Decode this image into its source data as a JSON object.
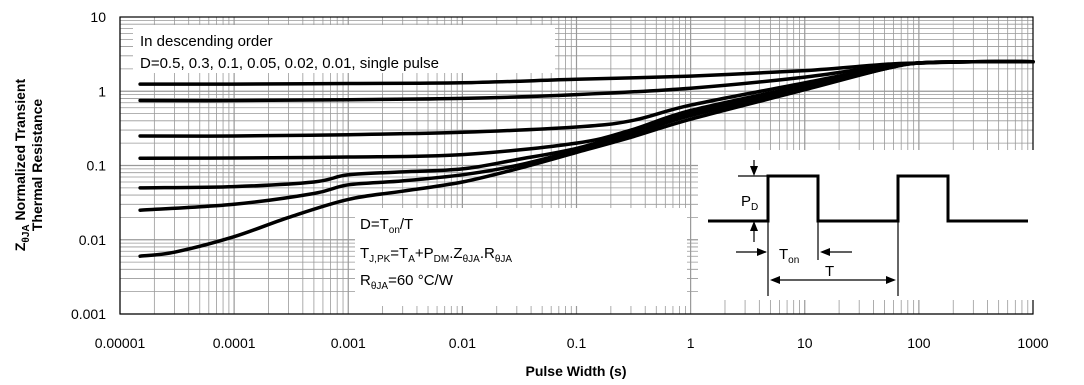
{
  "chart_data": {
    "type": "line",
    "xlabel": "Pulse Width (s)",
    "ylabel_line1": "Normalized Transient",
    "ylabel_line2": "Thermal Resistance",
    "ylabel_symbol": "Z",
    "ylabel_symbol_sub": "θJA",
    "x_scale": "log",
    "y_scale": "log",
    "xlim": [
      1e-05,
      1000
    ],
    "ylim": [
      0.001,
      10
    ],
    "grid": true,
    "x_ticks": [
      "0.00001",
      "0.0001",
      "0.001",
      "0.01",
      "0.1",
      "1",
      "10",
      "100",
      "1000"
    ],
    "y_ticks": [
      "0.001",
      "0.01",
      "0.1",
      "1",
      "10"
    ],
    "legend_note": {
      "line1": "In descending order",
      "line2": "D=0.5, 0.3, 0.1, 0.05, 0.02, 0.01, single pulse"
    },
    "formulas": {
      "duty": "D=T<sub>on</sub>/T",
      "tj": "T<sub>J,PK</sub>=T<sub>A</sub>+P<sub>DM</sub>.Z<sub>θJA</sub>.R<sub>θJA</sub>",
      "r": "R<sub>θJA</sub>=60 °C/W"
    },
    "inset": {
      "pd": "P<sub>D</sub>",
      "ton": "T<sub>on</sub>",
      "t": "T"
    },
    "series": [
      {
        "values": [
          [
            1.5e-05,
            1.25
          ],
          [
            0.0001,
            1.25
          ],
          [
            0.001,
            1.27
          ],
          [
            0.01,
            1.3
          ],
          [
            0.1,
            1.45
          ],
          [
            1,
            1.6
          ],
          [
            10,
            1.9
          ],
          [
            50,
            2.3
          ],
          [
            100,
            2.4
          ],
          [
            300,
            2.5
          ],
          [
            1000,
            2.5
          ]
        ]
      },
      {
        "values": [
          [
            1.5e-05,
            0.75
          ],
          [
            0.0001,
            0.75
          ],
          [
            0.001,
            0.77
          ],
          [
            0.01,
            0.8
          ],
          [
            0.1,
            0.9
          ],
          [
            1,
            1.1
          ],
          [
            10,
            1.55
          ],
          [
            50,
            2.2
          ],
          [
            100,
            2.4
          ],
          [
            300,
            2.5
          ],
          [
            1000,
            2.5
          ]
        ]
      },
      {
        "values": [
          [
            1.5e-05,
            0.25
          ],
          [
            0.0001,
            0.25
          ],
          [
            0.001,
            0.26
          ],
          [
            0.01,
            0.28
          ],
          [
            0.1,
            0.33
          ],
          [
            0.3,
            0.4
          ],
          [
            1,
            0.65
          ],
          [
            10,
            1.3
          ],
          [
            50,
            2.1
          ],
          [
            100,
            2.4
          ],
          [
            300,
            2.5
          ],
          [
            1000,
            2.5
          ]
        ]
      },
      {
        "values": [
          [
            1.5e-05,
            0.125
          ],
          [
            0.0001,
            0.126
          ],
          [
            0.001,
            0.13
          ],
          [
            0.01,
            0.14
          ],
          [
            0.1,
            0.2
          ],
          [
            0.3,
            0.3
          ],
          [
            1,
            0.55
          ],
          [
            10,
            1.2
          ],
          [
            50,
            2.1
          ],
          [
            100,
            2.4
          ],
          [
            300,
            2.5
          ],
          [
            1000,
            2.5
          ]
        ]
      },
      {
        "values": [
          [
            1.5e-05,
            0.05
          ],
          [
            0.0001,
            0.052
          ],
          [
            0.0005,
            0.06
          ],
          [
            0.001,
            0.075
          ],
          [
            0.003,
            0.082
          ],
          [
            0.01,
            0.09
          ],
          [
            0.03,
            0.12
          ],
          [
            0.1,
            0.17
          ],
          [
            0.3,
            0.28
          ],
          [
            1,
            0.5
          ],
          [
            10,
            1.15
          ],
          [
            50,
            2.05
          ],
          [
            100,
            2.4
          ],
          [
            300,
            2.5
          ],
          [
            1000,
            2.5
          ]
        ]
      },
      {
        "values": [
          [
            1.5e-05,
            0.025
          ],
          [
            0.0001,
            0.03
          ],
          [
            0.0005,
            0.042
          ],
          [
            0.001,
            0.055
          ],
          [
            0.003,
            0.062
          ],
          [
            0.01,
            0.075
          ],
          [
            0.03,
            0.1
          ],
          [
            0.1,
            0.16
          ],
          [
            0.3,
            0.26
          ],
          [
            1,
            0.47
          ],
          [
            10,
            1.1
          ],
          [
            50,
            2.0
          ],
          [
            100,
            2.4
          ],
          [
            300,
            2.5
          ],
          [
            1000,
            2.5
          ]
        ]
      },
      {
        "values": [
          [
            1.5e-05,
            0.006
          ],
          [
            3e-05,
            0.0068
          ],
          [
            0.0001,
            0.011
          ],
          [
            0.0003,
            0.02
          ],
          [
            0.001,
            0.035
          ],
          [
            0.003,
            0.045
          ],
          [
            0.01,
            0.06
          ],
          [
            0.03,
            0.09
          ],
          [
            0.1,
            0.15
          ],
          [
            0.3,
            0.24
          ],
          [
            1,
            0.42
          ],
          [
            10,
            1.05
          ],
          [
            50,
            2.0
          ],
          [
            100,
            2.4
          ],
          [
            300,
            2.5
          ],
          [
            1000,
            2.5
          ]
        ]
      }
    ]
  }
}
